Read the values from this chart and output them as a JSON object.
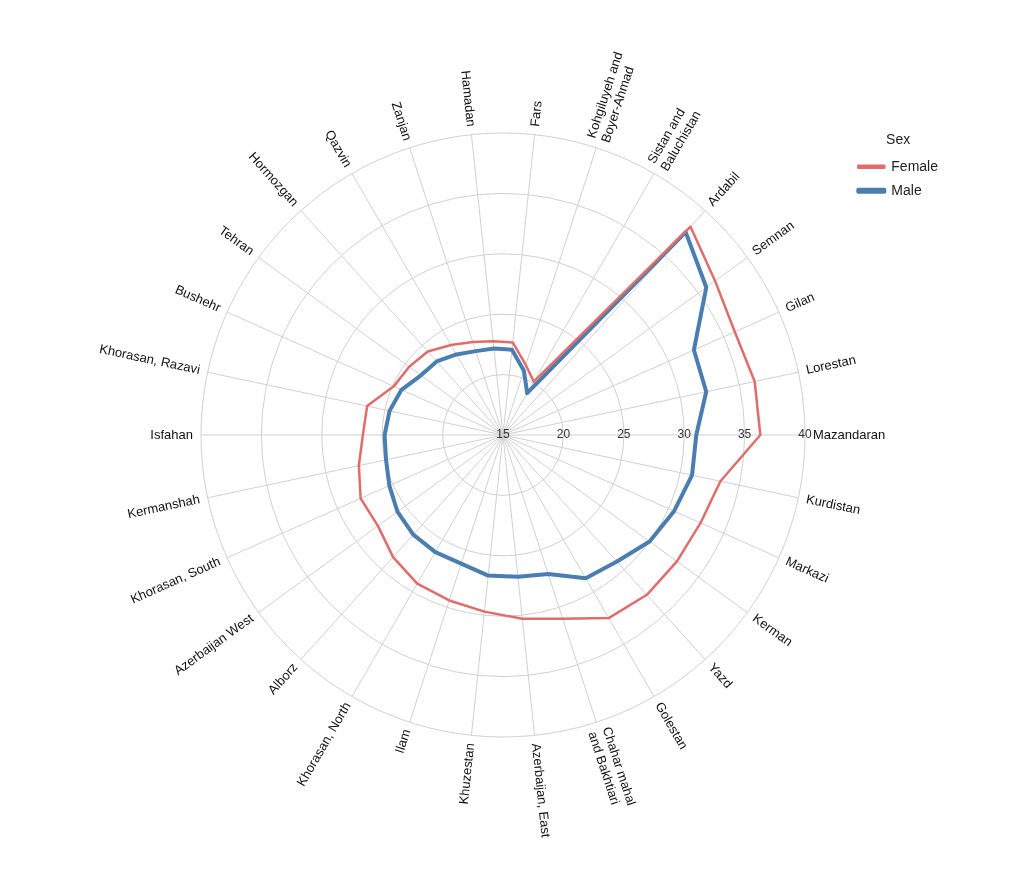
{
  "chart_data": {
    "type": "radar",
    "legend_title": "Sex",
    "legend": "top right",
    "grid": true,
    "marker": "none",
    "ylim": [
      15,
      40
    ],
    "yticks": [
      15,
      20,
      25,
      30,
      35,
      40
    ],
    "categories": [
      "Hamadan",
      "Fars",
      "Kohgiluyeh and Boyer-Ahmad",
      "Sistan and Baluchistan",
      "Ardabil",
      "Semnan",
      "Gilan",
      "Lorestan",
      "Mazandaran",
      "Kurdistan",
      "Markazi",
      "Kerman",
      "Yazd",
      "Golestan",
      "Chahar mahal and Bakhtiari",
      "Azerbaijan, East",
      "Khuzestan",
      "Ilam",
      "Khorasan, North",
      "Alborz",
      "Azerbaijan West",
      "Khorasan, South",
      "Kermanshah",
      "Isfahan",
      "Khorasan, Razavi",
      "Bushehr",
      "Tehran",
      "Hormozgan",
      "Qazvin",
      "Zanjan"
    ],
    "series": [
      {
        "name": "Female",
        "color": "#e06c6c",
        "values": [
          22.8,
          22.7,
          21.1,
          20.1,
          38.2,
          36.7,
          36.0,
          36.3,
          36.3,
          33.4,
          32.9,
          32.8,
          32.8,
          32.5,
          31.0,
          30.3,
          29.7,
          29.4,
          29.2,
          28.6,
          27.8,
          27.9,
          27.2,
          26.6,
          26.5,
          24.9,
          24.6,
          24.3,
          23.6,
          23.1
        ]
      },
      {
        "name": "Male",
        "color": "#4a7db0",
        "values": [
          22.2,
          22.1,
          20.6,
          19.0,
          37.6,
          35.8,
          32.3,
          32.2,
          31.0,
          31.0,
          30.5,
          30.0,
          29.1,
          28.7,
          27.1,
          26.8,
          26.7,
          26.2,
          26.2,
          26.1,
          25.8,
          25.3,
          24.9,
          24.8,
          24.6,
          24.2,
          23.4,
          23.2,
          22.7,
          22.3
        ]
      }
    ]
  }
}
